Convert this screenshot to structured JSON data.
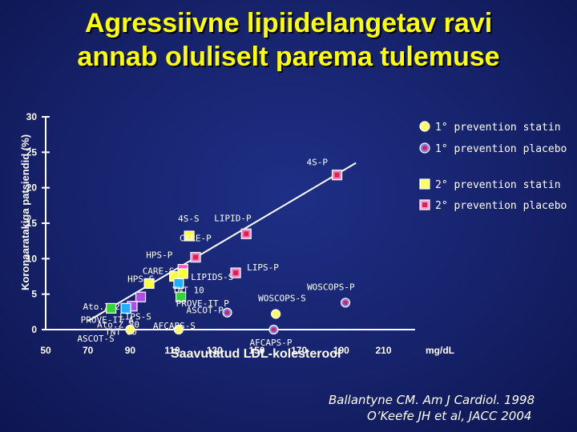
{
  "title": {
    "line1": "Agressiivne lipiidelangetav ravi",
    "line2": "annab oluliselt parema tulemuse"
  },
  "citation": {
    "line1": "Ballantyne CM. Am J Cardiol. 1998",
    "line2": "O’Keefe JH et al, JACC 2004"
  },
  "chart_data": {
    "type": "scatter",
    "xlabel": "Saavutatud LDL-kolesterool",
    "ylabel": "Koronaaratakiga patsiendid (%)",
    "x_unit": "mg/dL",
    "x_ticks": [
      50,
      70,
      90,
      110,
      130,
      150,
      170,
      190,
      210
    ],
    "y_ticks": [
      0,
      5,
      10,
      15,
      20,
      25,
      30
    ],
    "xlim": [
      50,
      225
    ],
    "ylim": [
      0,
      30
    ],
    "grid": false,
    "legend_position": "top-right",
    "legend": [
      {
        "key": "pri_statin",
        "label": "1° prevention statin",
        "shape": "circle",
        "color": "#ffff66",
        "center": "#ffff66"
      },
      {
        "key": "pri_placebo",
        "label": "1° prevention placebo",
        "shape": "circle",
        "color": "#8080ff",
        "center": "#e0204a"
      },
      {
        "key": "sec_statin",
        "label": "2° prevention statin",
        "shape": "square",
        "color": "#ffff66",
        "center": "#ffff66"
      },
      {
        "key": "sec_placebo",
        "label": "2° prevention placebo",
        "shape": "square",
        "color": "#ff9ad0",
        "center": "#e0204a"
      }
    ],
    "trend_line": {
      "x": [
        70,
        197
      ],
      "y": [
        1.2,
        23.5
      ]
    },
    "points": [
      {
        "label": "4S-P",
        "x": 188,
        "y": 21.8,
        "shape": "square",
        "color": "#ee82c4",
        "center": "#e0204a"
      },
      {
        "label": "4S-S",
        "x": 118,
        "y": 13.2,
        "shape": "square",
        "color": "#ffff33",
        "center": "#ffff33"
      },
      {
        "label": "LIPID-P",
        "x": 145,
        "y": 13.5,
        "shape": "square",
        "color": "#ee82c4",
        "center": "#e0204a"
      },
      {
        "label": "CARE-P",
        "x": 121,
        "y": 10.2,
        "shape": "square",
        "color": "#ee82c4",
        "center": "#e0204a"
      },
      {
        "label": "HPS-P",
        "x": 115,
        "y": 8.5,
        "shape": "square",
        "color": "#ff4fd0",
        "center": "#ff4fd0"
      },
      {
        "label": "CARE-S",
        "x": 111,
        "y": 7.5,
        "shape": "square",
        "color": "#ffff33",
        "center": "#ffff33"
      },
      {
        "label": "LIPIDS-S",
        "x": 115,
        "y": 7.9,
        "shape": "square",
        "color": "#ffff33",
        "center": "#ffff33"
      },
      {
        "label": "LIPS-P",
        "x": 140,
        "y": 8.0,
        "shape": "square",
        "color": "#ee82c4",
        "center": "#e0204a"
      },
      {
        "label": "HPS-S",
        "x": 99,
        "y": 6.5,
        "shape": "square",
        "color": "#ffff33",
        "center": "#ffff33"
      },
      {
        "label": "TNT 10",
        "x": 113,
        "y": 6.5,
        "shape": "square",
        "color": "#1fb0ff",
        "center": "#1fb0ff"
      },
      {
        "label": "PROVE-IT P",
        "x": 114,
        "y": 4.6,
        "shape": "square",
        "color": "#33d633",
        "center": "#33d633"
      },
      {
        "label": "Ato.Z 20",
        "x": 95,
        "y": 4.6,
        "shape": "square",
        "color": "#b04fe8",
        "center": "#b04fe8"
      },
      {
        "label": "PROVE-IT A",
        "x": 81,
        "y": 3.0,
        "shape": "square",
        "color": "#33d633",
        "center": "#33d633"
      },
      {
        "label": "Ato.Z 80",
        "x": 91,
        "y": 3.3,
        "shape": "square",
        "color": "#b04fe8",
        "center": "#b04fe8"
      },
      {
        "label": "LIPS-S",
        "x": 88,
        "y": 3.0,
        "shape": "square",
        "color": "#1fb0ff",
        "center": "#1fb0ff"
      },
      {
        "label": "TNT 80",
        "x": 88,
        "y": 3.0,
        "shape": "square",
        "color": "#1fb0ff",
        "center": "#1fb0ff"
      },
      {
        "label": "WOSCOPS-P",
        "x": 192,
        "y": 3.8,
        "shape": "circle",
        "color": "#8080ff",
        "center": "#e0204a"
      },
      {
        "label": "WOSCOPS-S",
        "x": 159,
        "y": 2.2,
        "shape": "circle",
        "color": "#ffff66",
        "center": "#ffff66"
      },
      {
        "label": "ASCOT-P",
        "x": 136,
        "y": 2.4,
        "shape": "circle",
        "color": "#8080ff",
        "center": "#e0204a"
      },
      {
        "label": "ASCOT-S",
        "x": 90,
        "y": 0.0,
        "shape": "circle",
        "color": "#ffff66",
        "center": "#ffff66"
      },
      {
        "label": "AFCAPS-S",
        "x": 113,
        "y": 0.0,
        "shape": "circle",
        "color": "#ffff66",
        "center": "#ffff66"
      },
      {
        "label": "AFCAPS-P",
        "x": 158,
        "y": 0.0,
        "shape": "circle",
        "color": "#8080ff",
        "center": "#e0204a"
      }
    ]
  }
}
